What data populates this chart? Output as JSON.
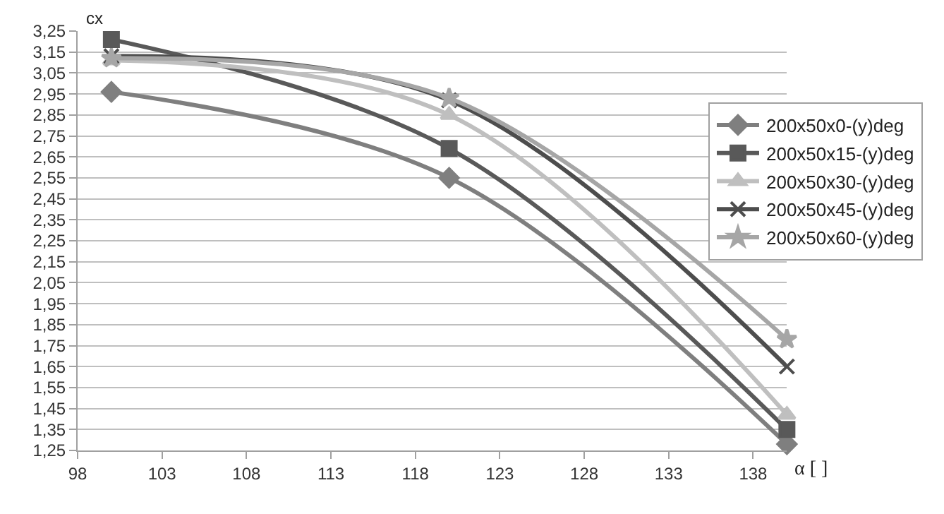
{
  "chart_data": {
    "type": "line",
    "xlabel": "α [ ]",
    "ylabel": "cx",
    "x": [
      100,
      120,
      140
    ],
    "series": [
      {
        "name": "200x50x0-(y)deg",
        "color": "#7f7f7f",
        "marker": "diamond",
        "values": [
          2.96,
          2.55,
          1.28
        ]
      },
      {
        "name": "200x50x15-(y)deg",
        "color": "#595959",
        "marker": "square",
        "values": [
          3.21,
          2.69,
          1.35
        ]
      },
      {
        "name": "200x50x30-(y)deg",
        "color": "#bfbfbf",
        "marker": "triangle",
        "values": [
          3.11,
          2.85,
          1.42
        ]
      },
      {
        "name": "200x50x45-(y)deg",
        "color": "#4d4d4d",
        "marker": "cross",
        "values": [
          3.13,
          2.92,
          1.65
        ]
      },
      {
        "name": "200x50x60-(y)deg",
        "color": "#a6a6a6",
        "marker": "star",
        "values": [
          3.12,
          2.93,
          1.78
        ]
      }
    ],
    "xlim": [
      98,
      140
    ],
    "xticks": [
      98,
      103,
      108,
      113,
      118,
      123,
      128,
      133,
      138
    ],
    "ylim": [
      1.25,
      3.25
    ],
    "yticks": [
      {
        "value": 1.25,
        "label": "1,25"
      },
      {
        "value": 1.35,
        "label": "1,35"
      },
      {
        "value": 1.45,
        "label": "1,45"
      },
      {
        "value": 1.55,
        "label": "1,55"
      },
      {
        "value": 1.65,
        "label": "1,65"
      },
      {
        "value": 1.75,
        "label": "1,75"
      },
      {
        "value": 1.85,
        "label": "1,85"
      },
      {
        "value": 1.95,
        "label": "1,95"
      },
      {
        "value": 2.05,
        "label": "2,05"
      },
      {
        "value": 2.15,
        "label": "2,15"
      },
      {
        "value": 2.25,
        "label": "2,25"
      },
      {
        "value": 2.35,
        "label": "2,35"
      },
      {
        "value": 2.45,
        "label": "2,45"
      },
      {
        "value": 2.55,
        "label": "2,55"
      },
      {
        "value": 2.65,
        "label": "2,65"
      },
      {
        "value": 2.75,
        "label": "2,75"
      },
      {
        "value": 2.85,
        "label": "2,85"
      },
      {
        "value": 2.95,
        "label": "2,95"
      },
      {
        "value": 3.05,
        "label": "3,05"
      },
      {
        "value": 3.15,
        "label": "3,15"
      },
      {
        "value": 3.25,
        "label": "3,25"
      }
    ],
    "grid": "y",
    "legend": "right"
  }
}
